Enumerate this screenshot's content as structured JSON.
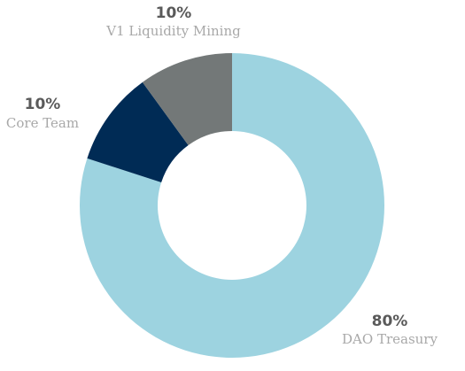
{
  "chart_data": {
    "type": "pie",
    "style": "donut",
    "slices": [
      {
        "label": "DAO Treasury",
        "value": 80,
        "value_label": "80%",
        "color": "#9dd3e0"
      },
      {
        "label": "Core Team",
        "value": 10,
        "value_label": "10%",
        "color": "#002b55"
      },
      {
        "label": "V1 Liquidity Mining",
        "value": 10,
        "value_label": "10%",
        "color": "#737878"
      }
    ],
    "start_angle_deg": 0,
    "direction": "clockwise"
  }
}
